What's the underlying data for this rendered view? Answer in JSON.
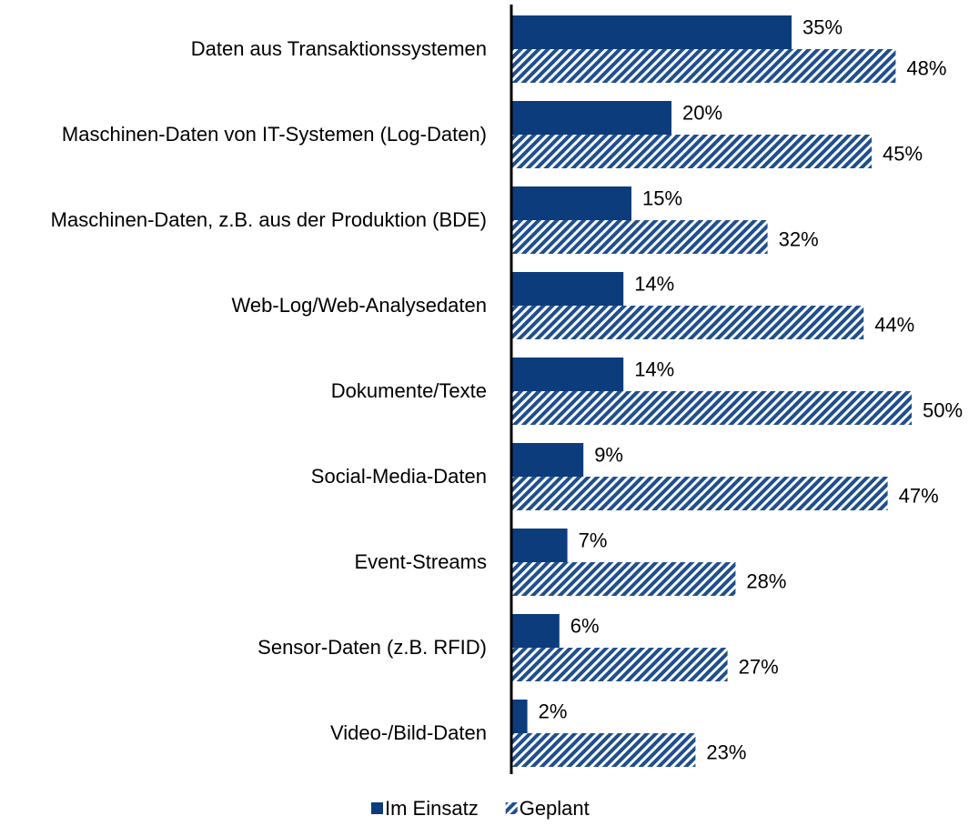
{
  "chart_data": {
    "type": "hbar",
    "categories": [
      "Daten aus Transaktionssystemen",
      "Maschinen-Daten von IT-Systemen (Log-Daten)",
      "Maschinen-Daten, z.B. aus der Produktion (BDE)",
      "Web-Log/Web-Analysedaten",
      "Dokumente/Texte",
      "Social-Media-Daten",
      "Event-Streams",
      "Sensor-Daten (z.B. RFID)",
      "Video-/Bild-Daten"
    ],
    "series": [
      {
        "name": "Im Einsatz",
        "color": "#0c3c7c",
        "values": [
          35,
          20,
          15,
          14,
          14,
          9,
          7,
          6,
          2
        ],
        "value_labels": [
          "35%",
          "20%",
          "15%",
          "14%",
          "14%",
          "9%",
          "7%",
          "6%",
          "2%"
        ]
      },
      {
        "name": "Geplant",
        "color": "#1f4f8f",
        "hatch": true,
        "values": [
          48,
          45,
          32,
          44,
          50,
          47,
          28,
          27,
          23
        ],
        "value_labels": [
          "48%",
          "45%",
          "32%",
          "44%",
          "50%",
          "47%",
          "28%",
          "27%",
          "23%"
        ]
      }
    ],
    "xlim": [
      0,
      50
    ],
    "legend": "bottom"
  }
}
